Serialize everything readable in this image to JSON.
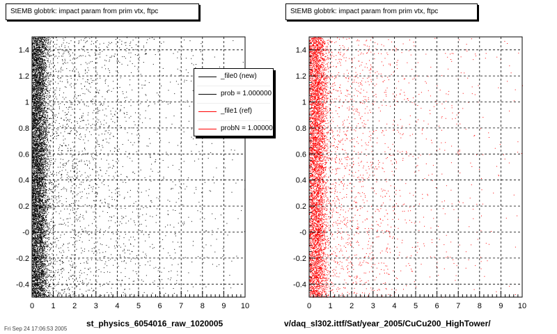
{
  "footer_stamp": "Fri Sep 24 17:06:53 2005",
  "legend": {
    "items": [
      {
        "label": "_file0 (new)",
        "color": "#000000"
      },
      {
        "label": "prob = 1.000000",
        "color": "#000000"
      },
      {
        "label": "_file1 (ref)",
        "color": "#ff0000"
      },
      {
        "label": "probN = 1.000000",
        "color": "#ff0000"
      }
    ]
  },
  "chart_data": [
    {
      "type": "scatter",
      "title": "StEMB globtrk: impact param from prim vtx, ftpc",
      "xlabel": "st_physics_6054016_raw_1020005",
      "ylabel": "",
      "xlim": [
        0,
        10
      ],
      "ylim": [
        -0.5,
        1.5
      ],
      "x_ticks": [
        "0",
        "1",
        "2",
        "3",
        "4",
        "5",
        "6",
        "7",
        "8",
        "9",
        "10"
      ],
      "y_ticks": [
        "-0.4",
        "-0.2",
        "-0",
        "0.2",
        "0.4",
        "0.6",
        "0.8",
        "1",
        "1.2",
        "1.4"
      ],
      "grid": true,
      "legend_position": "top-right",
      "series": [
        {
          "color": "#000000",
          "points": 9000,
          "peak_x": 0.3,
          "decay": 1.3
        }
      ]
    },
    {
      "type": "scatter",
      "title": "StEMB globtrk: impact param from prim vtx, ftpc",
      "xlabel": "v/daq_sl302.ittf/Sat/year_2005/CuCu200_HighTower/",
      "ylabel": "",
      "xlim": [
        0,
        10
      ],
      "ylim": [
        -0.5,
        1.5
      ],
      "x_ticks": [
        "0",
        "1",
        "2",
        "3",
        "4",
        "5",
        "6",
        "7",
        "8",
        "9",
        "10"
      ],
      "y_ticks": [
        "-0.4",
        "-0.2",
        "-0",
        "0.2",
        "0.4",
        "0.6",
        "0.8",
        "1",
        "1.2",
        "1.4"
      ],
      "grid": true,
      "series": [
        {
          "color": "#ff0000",
          "points": 7000,
          "peak_x": 0.35,
          "decay": 1.1
        }
      ]
    }
  ]
}
